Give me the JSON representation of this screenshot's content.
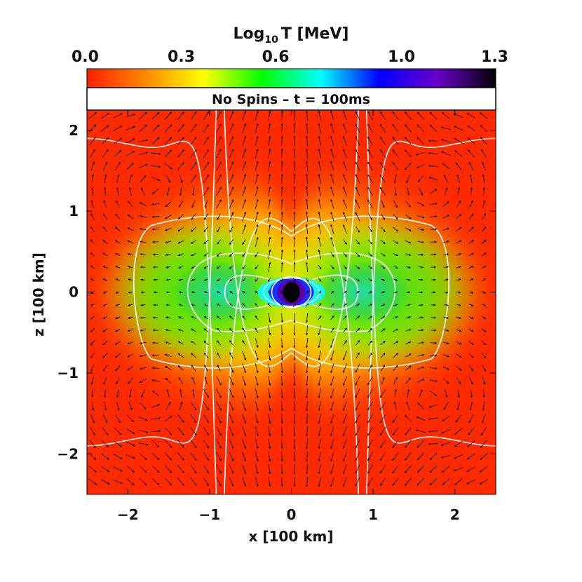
{
  "chart_data": {
    "type": "heatmap",
    "title": "No Spins – t = 100ms",
    "xlabel": "x [100 km]",
    "ylabel": "z [100 km]",
    "xlim": [
      -2.5,
      2.5
    ],
    "ylim": [
      -2.5,
      2.25
    ],
    "x_ticks": [
      -2,
      -1,
      0,
      1,
      2
    ],
    "x_tick_labels": [
      "−2",
      "−1",
      "0",
      "1",
      "2"
    ],
    "y_ticks": [
      -2,
      -1,
      0,
      1,
      2
    ],
    "y_tick_labels": [
      "−2",
      "−1",
      "0",
      "1",
      "2"
    ],
    "colorbar": {
      "label_prefix": "Log",
      "label_sub": "10",
      "label_suffix": "T [MeV]",
      "range": [
        0.0,
        1.3
      ],
      "ticks": [
        0.0,
        0.3,
        0.6,
        1.0,
        1.3
      ],
      "tick_labels": [
        "0.0",
        "0.3",
        "0.6",
        "1.0",
        "1.3"
      ],
      "colors": [
        "#ff1e00",
        "#ff8800",
        "#ffff00",
        "#00ff00",
        "#00ffff",
        "#0000ff",
        "#6a00c8",
        "#000000"
      ]
    },
    "field": "temperature",
    "overlays": [
      "velocity vectors",
      "white contour lines"
    ]
  }
}
